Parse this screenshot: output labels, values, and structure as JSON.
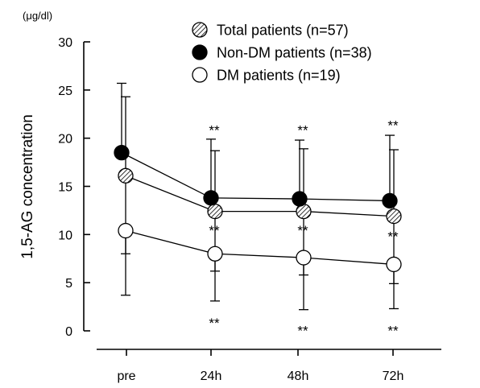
{
  "chart_data": {
    "type": "line",
    "title": "",
    "ylabel": "1,5-AG concentration",
    "yunit": "(μg/dl)",
    "xlabel": "",
    "categories": [
      "pre",
      "24h",
      "48h",
      "72h"
    ],
    "ylim": [
      0,
      30
    ],
    "yticks": [
      0,
      5,
      10,
      15,
      20,
      25,
      30
    ],
    "grid": false,
    "legend_position": "top-right",
    "series": [
      {
        "name": "Total patients (n=57)",
        "marker": "hatched",
        "values": [
          16.1,
          12.4,
          12.4,
          11.9
        ],
        "error_upper": [
          24.3,
          18.7,
          18.9,
          18.8
        ],
        "error_lower": [
          8.0,
          6.2,
          5.8,
          4.9
        ]
      },
      {
        "name": "Non-DM patients (n=38)",
        "marker": "filled",
        "values": [
          18.5,
          13.8,
          13.7,
          13.5
        ],
        "error_upper": [
          25.7,
          19.9,
          19.8,
          20.3
        ],
        "error_lower": null
      },
      {
        "name": "DM patients (n=19)",
        "marker": "open",
        "values": [
          10.4,
          8.0,
          7.6,
          6.9
        ],
        "error_upper": null,
        "error_lower": [
          3.7,
          3.1,
          2.2,
          2.3
        ]
      }
    ],
    "annotations": [
      {
        "text": "**",
        "x": "24h",
        "y": 21.0
      },
      {
        "text": "**",
        "x": "48h",
        "y": 21.0
      },
      {
        "text": "**",
        "x": "72h",
        "y": 21.5
      },
      {
        "text": "**",
        "x": "24h",
        "y": 10.6
      },
      {
        "text": "**",
        "x": "48h",
        "y": 10.6
      },
      {
        "text": "**",
        "x": "72h",
        "y": 10.0
      },
      {
        "text": "**",
        "x": "24h",
        "y": 1.0
      },
      {
        "text": "**",
        "x": "48h",
        "y": 0.2
      },
      {
        "text": "**",
        "x": "72h",
        "y": 0.2
      }
    ]
  }
}
